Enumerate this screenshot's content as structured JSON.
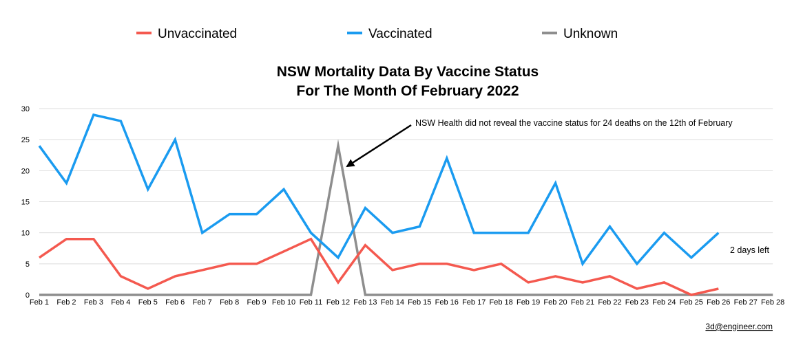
{
  "chart_data": {
    "type": "line",
    "title_lines": [
      "NSW Mortality Data By Vaccine Status",
      "For The Month Of February 2022"
    ],
    "categories": [
      "Feb 1",
      "Feb 2",
      "Feb 3",
      "Feb 4",
      "Feb 5",
      "Feb 6",
      "Feb 7",
      "Feb 8",
      "Feb 9",
      "Feb 10",
      "Feb 11",
      "Feb 12",
      "Feb 13",
      "Feb 14",
      "Feb 15",
      "Feb 16",
      "Feb 17",
      "Feb 18",
      "Feb 19",
      "Feb 20",
      "Feb 21",
      "Feb 22",
      "Feb 23",
      "Feb 24",
      "Feb 25",
      "Feb 26",
      "Feb 27",
      "Feb 28"
    ],
    "ylim": [
      0,
      30
    ],
    "yticks": [
      0,
      5,
      10,
      15,
      20,
      25,
      30
    ],
    "grid": true,
    "legend_position": "top",
    "series": [
      {
        "name": "Unvaccinated",
        "color": "#f4594f",
        "values": [
          6,
          9,
          9,
          3,
          1,
          3,
          4,
          5,
          5,
          7,
          9,
          2,
          8,
          4,
          5,
          5,
          4,
          5,
          2,
          3,
          2,
          3,
          1,
          2,
          0,
          1,
          null,
          null
        ]
      },
      {
        "name": "Vaccinated",
        "color": "#1a9bf0",
        "values": [
          24,
          18,
          29,
          28,
          17,
          25,
          10,
          13,
          13,
          17,
          10,
          6,
          14,
          10,
          11,
          22,
          10,
          10,
          10,
          18,
          5,
          11,
          5,
          10,
          6,
          10,
          null,
          null
        ]
      },
      {
        "name": "Unknown",
        "color": "#8e8e8e",
        "values": [
          0,
          0,
          0,
          0,
          0,
          0,
          0,
          0,
          0,
          0,
          0,
          24,
          0,
          0,
          0,
          0,
          0,
          0,
          0,
          0,
          0,
          0,
          0,
          0,
          0,
          0,
          0,
          0
        ]
      }
    ],
    "annotations": [
      {
        "text": "NSW Health did not reveal the vaccine status for 24 deaths on the 12th of February",
        "arrow_to_category": "Feb 12",
        "arrow_to_value": 20
      },
      {
        "text": "2 days left"
      }
    ]
  },
  "footer": {
    "credit": "3d@engineer.com"
  }
}
